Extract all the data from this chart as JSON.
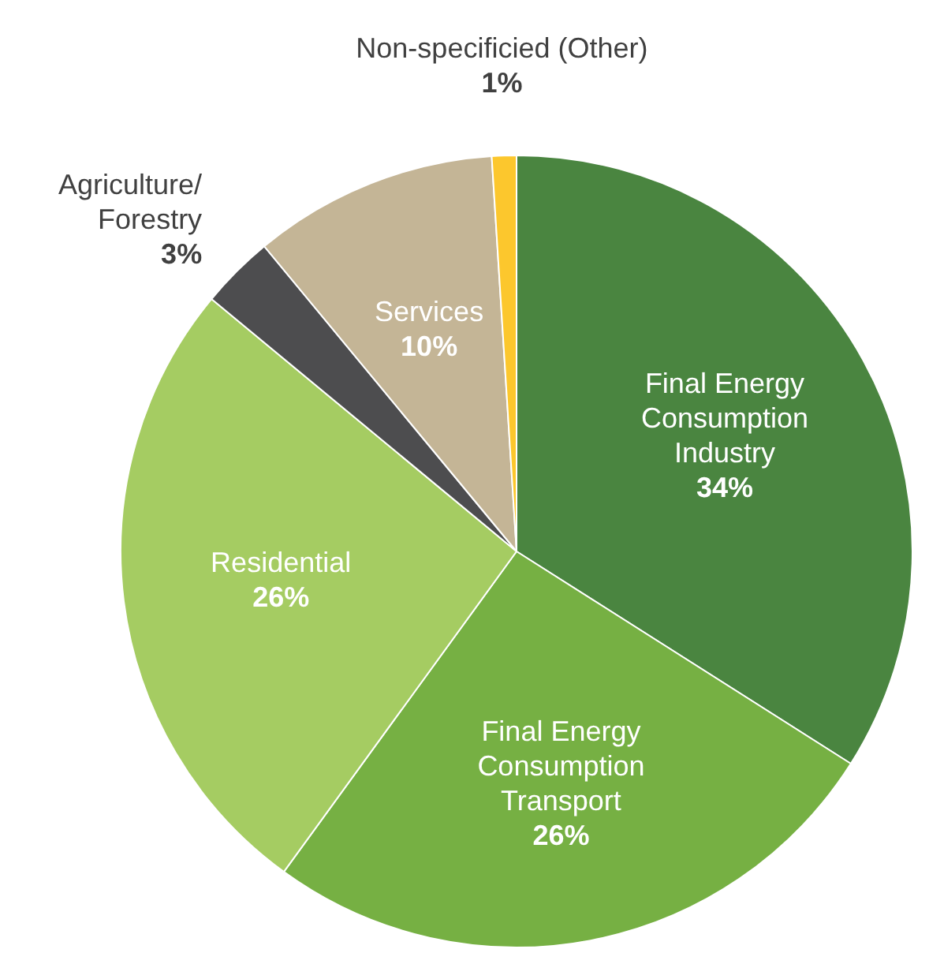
{
  "chart_data": {
    "type": "pie",
    "categories": [
      "Final Energy Consumption Industry",
      "Final Energy Consumption Transport",
      "Residential",
      "Agriculture/Forestry",
      "Services",
      "Non-specificied (Other)"
    ],
    "values": [
      34,
      26,
      26,
      3,
      10,
      1
    ],
    "value_labels": [
      "34%",
      "26%",
      "26%",
      "3%",
      "10%",
      "1%"
    ],
    "colors": [
      "#4a8540",
      "#76b043",
      "#a5cc62",
      "#4d4d4f",
      "#c4b596",
      "#fcc72d"
    ],
    "legend": false
  }
}
